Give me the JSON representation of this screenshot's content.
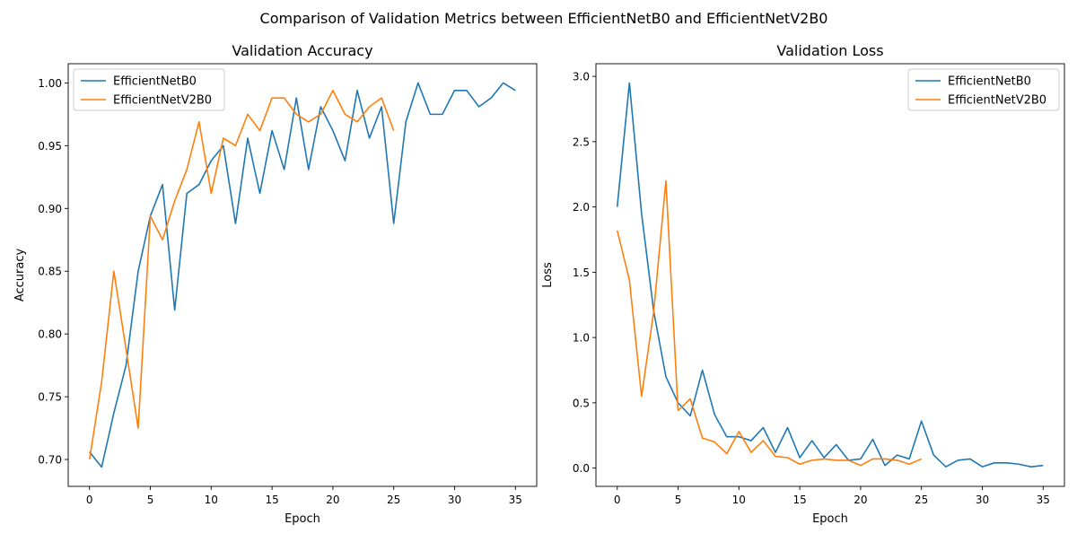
{
  "suptitle": "Comparison of Validation Metrics between EfficientNetB0 and EfficientNetV2B0",
  "colors": {
    "EfficientNetB0": "#1f77b4",
    "EfficientNetV2B0": "#ff7f0e"
  },
  "chart_data": [
    {
      "type": "line",
      "title": "Validation Accuracy",
      "xlabel": "Epoch",
      "ylabel": "Accuracy",
      "xlim": [
        -1.75,
        36.75
      ],
      "ylim": [
        0.6786,
        1.0153
      ],
      "xticks": [
        0,
        5,
        10,
        15,
        20,
        25,
        30,
        35
      ],
      "yticks": [
        0.7,
        0.75,
        0.8,
        0.85,
        0.9,
        0.95,
        1.0
      ],
      "ytick_labels": [
        "0.70",
        "0.75",
        "0.80",
        "0.85",
        "0.90",
        "0.95",
        "1.00"
      ],
      "legend": "upper-left",
      "grid": false,
      "series": [
        {
          "name": "EfficientNetB0",
          "color": "#1f77b4",
          "x": [
            0,
            1,
            2,
            3,
            4,
            5,
            6,
            7,
            8,
            9,
            10,
            11,
            12,
            13,
            14,
            15,
            16,
            17,
            18,
            19,
            20,
            21,
            22,
            23,
            24,
            25,
            26,
            27,
            28,
            29,
            30,
            31,
            32,
            33,
            34,
            35
          ],
          "y": [
            0.706,
            0.694,
            0.737,
            0.775,
            0.85,
            0.894,
            0.919,
            0.819,
            0.912,
            0.919,
            0.938,
            0.95,
            0.888,
            0.956,
            0.912,
            0.962,
            0.931,
            0.988,
            0.931,
            0.981,
            0.962,
            0.938,
            0.994,
            0.956,
            0.981,
            0.888,
            0.969,
            1.0,
            0.975,
            0.975,
            0.994,
            0.994,
            0.981,
            0.988,
            1.0,
            0.994
          ]
        },
        {
          "name": "EfficientNetV2B0",
          "color": "#ff7f0e",
          "x": [
            0,
            1,
            2,
            3,
            4,
            5,
            6,
            7,
            8,
            9,
            10,
            11,
            12,
            13,
            14,
            15,
            16,
            17,
            18,
            19,
            20,
            21,
            22,
            23,
            24,
            25
          ],
          "y": [
            0.7,
            0.762,
            0.85,
            0.788,
            0.725,
            0.894,
            0.875,
            0.906,
            0.931,
            0.969,
            0.912,
            0.956,
            0.95,
            0.975,
            0.962,
            0.988,
            0.988,
            0.975,
            0.969,
            0.975,
            0.994,
            0.975,
            0.969,
            0.981,
            0.988,
            0.962
          ]
        }
      ]
    },
    {
      "type": "line",
      "title": "Validation Loss",
      "xlabel": "Epoch",
      "ylabel": "Loss",
      "xlim": [
        -1.75,
        36.75
      ],
      "ylim": [
        -0.14,
        3.097
      ],
      "xticks": [
        0,
        5,
        10,
        15,
        20,
        25,
        30,
        35
      ],
      "yticks": [
        0.0,
        0.5,
        1.0,
        1.5,
        2.0,
        2.5,
        3.0
      ],
      "ytick_labels": [
        "0.0",
        "0.5",
        "1.0",
        "1.5",
        "2.0",
        "2.5",
        "3.0"
      ],
      "legend": "upper-right",
      "grid": false,
      "series": [
        {
          "name": "EfficientNetB0",
          "color": "#1f77b4",
          "x": [
            0,
            1,
            2,
            3,
            4,
            5,
            6,
            7,
            8,
            9,
            10,
            11,
            12,
            13,
            14,
            15,
            16,
            17,
            18,
            19,
            20,
            21,
            22,
            23,
            24,
            25,
            26,
            27,
            28,
            29,
            30,
            31,
            32,
            33,
            34,
            35
          ],
          "y": [
            2.0,
            2.95,
            1.95,
            1.2,
            0.7,
            0.5,
            0.4,
            0.75,
            0.41,
            0.24,
            0.24,
            0.21,
            0.31,
            0.12,
            0.31,
            0.08,
            0.21,
            0.08,
            0.18,
            0.06,
            0.07,
            0.22,
            0.02,
            0.1,
            0.07,
            0.36,
            0.1,
            0.01,
            0.06,
            0.07,
            0.01,
            0.04,
            0.04,
            0.03,
            0.01,
            0.02
          ]
        },
        {
          "name": "EfficientNetV2B0",
          "color": "#ff7f0e",
          "x": [
            0,
            1,
            2,
            3,
            4,
            5,
            6,
            7,
            8,
            9,
            10,
            11,
            12,
            13,
            14,
            15,
            16,
            17,
            18,
            19,
            20,
            21,
            22,
            23,
            24,
            25
          ],
          "y": [
            1.82,
            1.44,
            0.55,
            1.2,
            2.2,
            0.44,
            0.53,
            0.23,
            0.2,
            0.11,
            0.28,
            0.12,
            0.21,
            0.09,
            0.08,
            0.03,
            0.06,
            0.07,
            0.06,
            0.06,
            0.02,
            0.07,
            0.07,
            0.06,
            0.03,
            0.07
          ]
        }
      ]
    }
  ]
}
